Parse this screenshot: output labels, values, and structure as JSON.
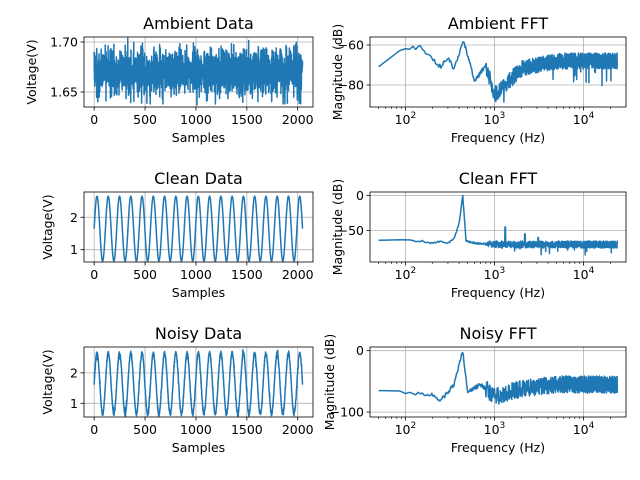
{
  "chart_data": [
    {
      "type": "line",
      "title": "Ambient Data",
      "xlabel": "Samples",
      "ylabel": "Voltage(V)",
      "xscale": "linear",
      "xlim": [
        -100,
        2150
      ],
      "ylim": [
        1.635,
        1.705
      ],
      "xticks": [
        0,
        500,
        1000,
        1500,
        2000
      ],
      "yticks": [
        1.65,
        1.7
      ],
      "ytick_labels": [
        "1.65",
        "1.70"
      ],
      "grid": true,
      "series_color": "#1f77b4",
      "series": [
        {
          "kind": "noise",
          "x_start": 0,
          "x_end": 2047,
          "points": 2048,
          "center": 1.67,
          "band": [
            1.648,
            1.69
          ],
          "extremes": [
            1.638,
            1.7
          ]
        }
      ]
    },
    {
      "type": "line",
      "title": "Ambient FFT",
      "xlabel": "Frequency (Hz)",
      "ylabel": "Magnitude (dB)",
      "xscale": "log",
      "xlim": [
        40,
        30000
      ],
      "ylim": [
        -91,
        -56
      ],
      "xticks": [
        100,
        1000,
        10000
      ],
      "xtick_labels": [
        [
          "10",
          "2"
        ],
        [
          "10",
          "3"
        ],
        [
          "10",
          "4"
        ]
      ],
      "yticks": [
        -80,
        -60
      ],
      "ytick_labels": [
        "−80",
        "−60"
      ],
      "grid": true,
      "series_color": "#1f77b4",
      "series": [
        {
          "kind": "fft",
          "f_start": 50,
          "f_end": 24000,
          "points": 1024,
          "anchors": [
            [
              50,
              -70
            ],
            [
              100,
              -62
            ],
            [
              150,
              -61
            ],
            [
              200,
              -67
            ],
            [
              250,
              -71
            ],
            [
              300,
              -66
            ],
            [
              350,
              -72
            ],
            [
              450,
              -58
            ],
            [
              600,
              -78
            ],
            [
              800,
              -70
            ],
            [
              1000,
              -85
            ],
            [
              2000,
              -72
            ],
            [
              5000,
              -68
            ],
            [
              24000,
              -68
            ]
          ],
          "ripple": 8,
          "min_floor": -89
        }
      ]
    },
    {
      "type": "line",
      "title": "Clean Data",
      "xlabel": "Samples",
      "ylabel": "Voltage(V)",
      "xscale": "linear",
      "xlim": [
        -100,
        2150
      ],
      "ylim": [
        0.62,
        2.78
      ],
      "xticks": [
        0,
        500,
        1000,
        1500,
        2000
      ],
      "yticks": [
        1,
        2
      ],
      "ytick_labels": [
        "1",
        "2"
      ],
      "grid": true,
      "series_color": "#1f77b4",
      "series": [
        {
          "kind": "sine",
          "x_start": 0,
          "x_end": 2047,
          "points": 2048,
          "offset": 1.65,
          "amplitude": 1.0,
          "cycles": 18.5,
          "phase": 0
        }
      ]
    },
    {
      "type": "line",
      "title": "Clean FFT",
      "xlabel": "Frequency (Hz)",
      "ylabel": "Magnitude (dB)",
      "xscale": "log",
      "xlim": [
        40,
        30000
      ],
      "ylim": [
        -95,
        5
      ],
      "xticks": [
        100,
        1000,
        10000
      ],
      "xtick_labels": [
        [
          "10",
          "2"
        ],
        [
          "10",
          "3"
        ],
        [
          "10",
          "4"
        ]
      ],
      "yticks": [
        -50,
        0
      ],
      "ytick_labels": [
        "−50",
        "0"
      ],
      "grid": true,
      "series_color": "#1f77b4",
      "series": [
        {
          "kind": "fft",
          "f_start": 50,
          "f_end": 24000,
          "points": 1024,
          "anchors": [
            [
              50,
              -63
            ],
            [
              150,
              -65
            ],
            [
              200,
              -68
            ],
            [
              250,
              -65
            ],
            [
              300,
              -68
            ],
            [
              350,
              -62
            ],
            [
              400,
              -40
            ],
            [
              440,
              0
            ],
            [
              480,
              -65
            ],
            [
              600,
              -68
            ],
            [
              1000,
              -70
            ],
            [
              2000,
              -70
            ],
            [
              24000,
              -70
            ]
          ],
          "ripple": 10,
          "min_floor": -90,
          "spikes": [
            [
              1320,
              -45
            ],
            [
              2200,
              -55
            ],
            [
              3100,
              -60
            ]
          ]
        }
      ]
    },
    {
      "type": "line",
      "title": "Noisy Data",
      "xlabel": "Samples",
      "ylabel": "Voltage(V)",
      "xscale": "linear",
      "xlim": [
        -100,
        2150
      ],
      "ylim": [
        0.55,
        2.85
      ],
      "xticks": [
        0,
        500,
        1000,
        1500,
        2000
      ],
      "yticks": [
        1,
        2
      ],
      "ytick_labels": [
        "1",
        "2"
      ],
      "grid": true,
      "series_color": "#1f77b4",
      "series": [
        {
          "kind": "sine",
          "x_start": 0,
          "x_end": 2047,
          "points": 2048,
          "offset": 1.65,
          "amplitude": 1.0,
          "cycles": 18.5,
          "phase": 0,
          "noise": 0.06
        }
      ]
    },
    {
      "type": "line",
      "title": "Noisy FFT",
      "xlabel": "Frequency (Hz)",
      "ylabel": "Magnitude (dB)",
      "xscale": "log",
      "xlim": [
        40,
        30000
      ],
      "ylim": [
        -108,
        6
      ],
      "xticks": [
        100,
        1000,
        10000
      ],
      "xtick_labels": [
        [
          "10",
          "2"
        ],
        [
          "10",
          "3"
        ],
        [
          "10",
          "4"
        ]
      ],
      "yticks": [
        -100,
        0
      ],
      "ytick_labels": [
        "−100",
        "0"
      ],
      "grid": true,
      "series_color": "#1f77b4",
      "series": [
        {
          "kind": "fft",
          "f_start": 50,
          "f_end": 24000,
          "points": 1024,
          "anchors": [
            [
              50,
              -63
            ],
            [
              150,
              -70
            ],
            [
              200,
              -72
            ],
            [
              250,
              -80
            ],
            [
              300,
              -68
            ],
            [
              350,
              -55
            ],
            [
              440,
              0
            ],
            [
              500,
              -68
            ],
            [
              700,
              -55
            ],
            [
              1000,
              -75
            ],
            [
              2000,
              -62
            ],
            [
              5000,
              -55
            ],
            [
              24000,
              -55
            ]
          ],
          "ripple": 28,
          "min_floor": -100
        }
      ]
    }
  ]
}
